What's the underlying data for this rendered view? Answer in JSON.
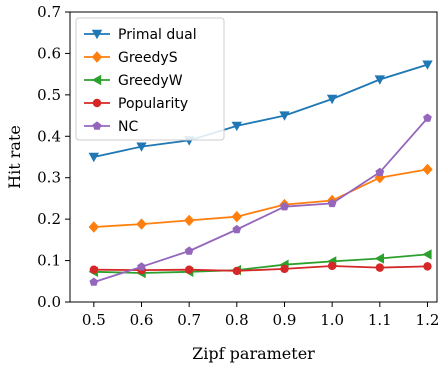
{
  "chart_data": {
    "type": "line",
    "title": "",
    "xlabel": "Zipf parameter",
    "ylabel": "Hit rate",
    "x": [
      0.5,
      0.6,
      0.7,
      0.8,
      0.9,
      1.0,
      1.1,
      1.2
    ],
    "x_ticks": [
      "0.5",
      "0.6",
      "0.7",
      "0.8",
      "0.9",
      "1.0",
      "1.1",
      "1.2"
    ],
    "y_ticks": [
      "0.0",
      "0.1",
      "0.2",
      "0.3",
      "0.4",
      "0.5",
      "0.6",
      "0.7"
    ],
    "xlim": [
      0.45,
      1.22
    ],
    "ylim": [
      0.0,
      0.7
    ],
    "grid": false,
    "legend_position": "top-left",
    "series": [
      {
        "name": "Primal dual",
        "color": "#1f77b4",
        "marker": "triangle-down",
        "values": [
          0.35,
          0.375,
          0.39,
          0.425,
          0.45,
          0.49,
          0.537,
          0.573
        ]
      },
      {
        "name": "GreedyS",
        "color": "#ff7f0e",
        "marker": "diamond",
        "values": [
          0.181,
          0.188,
          0.197,
          0.206,
          0.235,
          0.245,
          0.3,
          0.32
        ]
      },
      {
        "name": "GreedyW",
        "color": "#2ca02c",
        "marker": "triangle-left",
        "values": [
          0.073,
          0.07,
          0.073,
          0.077,
          0.09,
          0.098,
          0.105,
          0.115
        ]
      },
      {
        "name": "Popularity",
        "color": "#d62728",
        "marker": "circle",
        "values": [
          0.078,
          0.077,
          0.078,
          0.075,
          0.08,
          0.087,
          0.083,
          0.086
        ]
      },
      {
        "name": "NC",
        "color": "#9467bd",
        "marker": "pentagon",
        "values": [
          0.048,
          0.085,
          0.123,
          0.175,
          0.23,
          0.238,
          0.313,
          0.444
        ]
      }
    ]
  }
}
